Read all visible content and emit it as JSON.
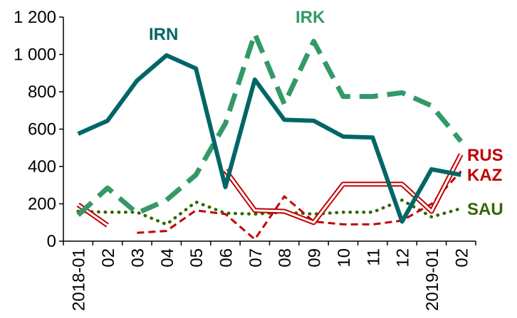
{
  "chart_data": {
    "type": "line",
    "title": "",
    "xlabel": "",
    "ylabel": "",
    "x": [
      "2018-01",
      "02",
      "03",
      "04",
      "05",
      "06",
      "07",
      "08",
      "09",
      "10",
      "11",
      "12",
      "2019-01",
      "02"
    ],
    "ylim": [
      0,
      1200
    ],
    "yticks": [
      0,
      200,
      400,
      600,
      800,
      1000,
      1200
    ],
    "ytick_labels": [
      "0",
      "200",
      "400",
      "600",
      "800",
      "1 000",
      "1 200"
    ],
    "grid": false,
    "legend": "inline labels",
    "series": [
      {
        "name": "IRN",
        "color": "#006666",
        "style": "solid-thick",
        "values": [
          575,
          645,
          860,
          995,
          925,
          290,
          865,
          650,
          645,
          560,
          555,
          105,
          385,
          355
        ]
      },
      {
        "name": "IRK",
        "color": "#339966",
        "style": "dashed-thick",
        "values": [
          140,
          285,
          150,
          220,
          355,
          630,
          1110,
          735,
          1070,
          775,
          775,
          795,
          725,
          535
        ]
      },
      {
        "name": "RUS",
        "color": "#c00000",
        "style": "double",
        "values": [
          195,
          85,
          null,
          null,
          null,
          380,
          165,
          160,
          100,
          305,
          305,
          305,
          160,
          465
        ]
      },
      {
        "name": "KAZ",
        "color": "#c00000",
        "style": "dashed",
        "values": [
          null,
          null,
          45,
          55,
          165,
          145,
          10,
          240,
          105,
          90,
          90,
          110,
          200,
          375
        ]
      },
      {
        "name": "SAU",
        "color": "#336600",
        "style": "dotted",
        "values": [
          160,
          155,
          155,
          90,
          210,
          150,
          145,
          155,
          145,
          155,
          155,
          220,
          130,
          175
        ]
      }
    ]
  }
}
